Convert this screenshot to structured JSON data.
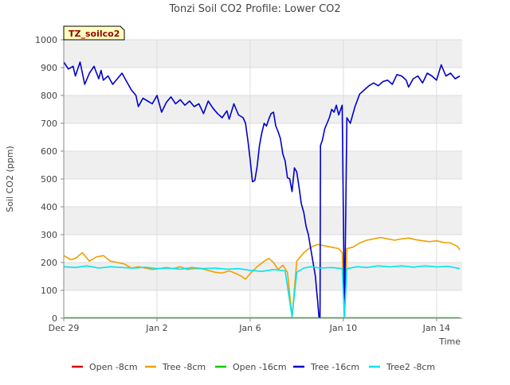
{
  "chart_data": {
    "type": "line",
    "title": "Tonzi Soil CO2 Profile: Lower CO2",
    "xlabel": "Time",
    "ylabel": "Soil CO2 (ppm)",
    "badge": "TZ_soilco2",
    "xlim": [
      0,
      17.1
    ],
    "ylim": [
      0,
      1000
    ],
    "grid": true,
    "x_ticks": [
      {
        "value": 0,
        "label": "Dec 29"
      },
      {
        "value": 4,
        "label": "Jan 2"
      },
      {
        "value": 8,
        "label": "Jan 6"
      },
      {
        "value": 12,
        "label": "Jan 10"
      },
      {
        "value": 16,
        "label": "Jan 14"
      }
    ],
    "y_ticks": [
      0,
      100,
      200,
      300,
      400,
      500,
      600,
      700,
      800,
      900,
      1000
    ],
    "legend_position": "bottom",
    "series": [
      {
        "name": "Open -8cm",
        "color": "#dd0000",
        "points": []
      },
      {
        "name": "Tree -8cm",
        "color": "#f0a000",
        "points": [
          [
            0,
            225
          ],
          [
            0.3,
            210
          ],
          [
            0.5,
            215
          ],
          [
            0.8,
            235
          ],
          [
            1.1,
            205
          ],
          [
            1.4,
            220
          ],
          [
            1.7,
            225
          ],
          [
            2.0,
            205
          ],
          [
            2.3,
            200
          ],
          [
            2.6,
            195
          ],
          [
            2.9,
            180
          ],
          [
            3.2,
            185
          ],
          [
            3.5,
            180
          ],
          [
            3.8,
            175
          ],
          [
            4.1,
            178
          ],
          [
            4.4,
            182
          ],
          [
            4.7,
            178
          ],
          [
            5.0,
            185
          ],
          [
            5.3,
            175
          ],
          [
            5.6,
            178
          ],
          [
            5.9,
            178
          ],
          [
            6.2,
            172
          ],
          [
            6.5,
            165
          ],
          [
            6.8,
            162
          ],
          [
            7.1,
            170
          ],
          [
            7.4,
            160
          ],
          [
            7.6,
            152
          ],
          [
            7.8,
            140
          ],
          [
            8.0,
            160
          ],
          [
            8.3,
            185
          ],
          [
            8.6,
            205
          ],
          [
            8.8,
            215
          ],
          [
            9.0,
            200
          ],
          [
            9.2,
            175
          ],
          [
            9.4,
            190
          ],
          [
            9.6,
            165
          ],
          [
            9.8,
            5
          ],
          [
            10.0,
            205
          ],
          [
            10.3,
            235
          ],
          [
            10.6,
            255
          ],
          [
            10.9,
            265
          ],
          [
            11.2,
            260
          ],
          [
            11.5,
            255
          ],
          [
            11.8,
            250
          ],
          [
            11.95,
            235
          ],
          [
            12.05,
            3
          ],
          [
            12.15,
            250
          ],
          [
            12.4,
            255
          ],
          [
            12.7,
            270
          ],
          [
            13.0,
            280
          ],
          [
            13.3,
            285
          ],
          [
            13.6,
            290
          ],
          [
            13.9,
            285
          ],
          [
            14.2,
            280
          ],
          [
            14.5,
            285
          ],
          [
            14.8,
            288
          ],
          [
            15.1,
            282
          ],
          [
            15.4,
            278
          ],
          [
            15.7,
            275
          ],
          [
            16.0,
            278
          ],
          [
            16.3,
            272
          ],
          [
            16.6,
            270
          ],
          [
            16.9,
            258
          ],
          [
            17.0,
            245
          ]
        ]
      },
      {
        "name": "Open -16cm",
        "color": "#00cc00",
        "points": [
          [
            0,
            1
          ],
          [
            17,
            1
          ]
        ]
      },
      {
        "name": "Tree -16cm",
        "color": "#0000cc",
        "points": [
          [
            0,
            920
          ],
          [
            0.2,
            895
          ],
          [
            0.4,
            905
          ],
          [
            0.5,
            870
          ],
          [
            0.7,
            920
          ],
          [
            0.9,
            840
          ],
          [
            1.1,
            880
          ],
          [
            1.3,
            905
          ],
          [
            1.5,
            860
          ],
          [
            1.6,
            890
          ],
          [
            1.7,
            855
          ],
          [
            1.9,
            870
          ],
          [
            2.1,
            840
          ],
          [
            2.3,
            860
          ],
          [
            2.5,
            880
          ],
          [
            2.7,
            850
          ],
          [
            2.9,
            820
          ],
          [
            3.1,
            800
          ],
          [
            3.2,
            760
          ],
          [
            3.4,
            790
          ],
          [
            3.6,
            780
          ],
          [
            3.8,
            770
          ],
          [
            4.0,
            800
          ],
          [
            4.2,
            740
          ],
          [
            4.4,
            775
          ],
          [
            4.6,
            795
          ],
          [
            4.8,
            770
          ],
          [
            5.0,
            785
          ],
          [
            5.2,
            765
          ],
          [
            5.4,
            780
          ],
          [
            5.6,
            760
          ],
          [
            5.8,
            770
          ],
          [
            6.0,
            735
          ],
          [
            6.2,
            780
          ],
          [
            6.4,
            755
          ],
          [
            6.6,
            735
          ],
          [
            6.8,
            720
          ],
          [
            7.0,
            745
          ],
          [
            7.1,
            715
          ],
          [
            7.3,
            770
          ],
          [
            7.5,
            730
          ],
          [
            7.7,
            720
          ],
          [
            7.8,
            700
          ],
          [
            7.9,
            640
          ],
          [
            8.0,
            570
          ],
          [
            8.1,
            490
          ],
          [
            8.2,
            495
          ],
          [
            8.3,
            545
          ],
          [
            8.4,
            620
          ],
          [
            8.5,
            665
          ],
          [
            8.6,
            700
          ],
          [
            8.7,
            690
          ],
          [
            8.8,
            715
          ],
          [
            8.9,
            735
          ],
          [
            9.0,
            740
          ],
          [
            9.1,
            690
          ],
          [
            9.2,
            670
          ],
          [
            9.3,
            645
          ],
          [
            9.4,
            590
          ],
          [
            9.5,
            565
          ],
          [
            9.6,
            505
          ],
          [
            9.7,
            500
          ],
          [
            9.8,
            455
          ],
          [
            9.9,
            540
          ],
          [
            10.0,
            525
          ],
          [
            10.1,
            470
          ],
          [
            10.2,
            410
          ],
          [
            10.3,
            380
          ],
          [
            10.4,
            330
          ],
          [
            10.5,
            300
          ],
          [
            10.6,
            250
          ],
          [
            10.7,
            200
          ],
          [
            10.8,
            150
          ],
          [
            10.85,
            100
          ],
          [
            10.9,
            60
          ],
          [
            10.95,
            5
          ],
          [
            11.0,
            3
          ],
          [
            11.02,
            620
          ],
          [
            11.1,
            640
          ],
          [
            11.2,
            680
          ],
          [
            11.3,
            700
          ],
          [
            11.4,
            720
          ],
          [
            11.5,
            750
          ],
          [
            11.6,
            740
          ],
          [
            11.7,
            765
          ],
          [
            11.8,
            730
          ],
          [
            11.95,
            765
          ],
          [
            12.05,
            3
          ],
          [
            12.15,
            720
          ],
          [
            12.3,
            700
          ],
          [
            12.5,
            760
          ],
          [
            12.7,
            805
          ],
          [
            12.9,
            820
          ],
          [
            13.1,
            835
          ],
          [
            13.3,
            845
          ],
          [
            13.5,
            835
          ],
          [
            13.7,
            850
          ],
          [
            13.9,
            855
          ],
          [
            14.1,
            840
          ],
          [
            14.3,
            875
          ],
          [
            14.5,
            870
          ],
          [
            14.7,
            855
          ],
          [
            14.8,
            830
          ],
          [
            15.0,
            860
          ],
          [
            15.2,
            870
          ],
          [
            15.4,
            845
          ],
          [
            15.6,
            880
          ],
          [
            15.8,
            870
          ],
          [
            16.0,
            855
          ],
          [
            16.2,
            910
          ],
          [
            16.4,
            870
          ],
          [
            16.6,
            880
          ],
          [
            16.8,
            860
          ],
          [
            17.0,
            870
          ]
        ]
      },
      {
        "name": "Tree2 -8cm",
        "color": "#00e5ee",
        "points": [
          [
            0,
            185
          ],
          [
            0.5,
            182
          ],
          [
            1.0,
            188
          ],
          [
            1.5,
            180
          ],
          [
            2.0,
            185
          ],
          [
            2.5,
            182
          ],
          [
            3.0,
            180
          ],
          [
            3.5,
            183
          ],
          [
            4.0,
            178
          ],
          [
            4.5,
            180
          ],
          [
            5.0,
            176
          ],
          [
            5.5,
            182
          ],
          [
            6.0,
            178
          ],
          [
            6.5,
            180
          ],
          [
            7.0,
            176
          ],
          [
            7.5,
            178
          ],
          [
            8.0,
            172
          ],
          [
            8.5,
            168
          ],
          [
            9.0,
            175
          ],
          [
            9.5,
            170
          ],
          [
            9.8,
            5
          ],
          [
            10.0,
            165
          ],
          [
            10.3,
            180
          ],
          [
            10.6,
            185
          ],
          [
            11.0,
            180
          ],
          [
            11.5,
            182
          ],
          [
            11.95,
            178
          ],
          [
            12.05,
            3
          ],
          [
            12.15,
            178
          ],
          [
            12.6,
            185
          ],
          [
            13.0,
            182
          ],
          [
            13.5,
            188
          ],
          [
            14.0,
            184
          ],
          [
            14.5,
            188
          ],
          [
            15.0,
            183
          ],
          [
            15.5,
            188
          ],
          [
            16.0,
            184
          ],
          [
            16.5,
            186
          ],
          [
            17.0,
            178
          ]
        ]
      }
    ]
  }
}
